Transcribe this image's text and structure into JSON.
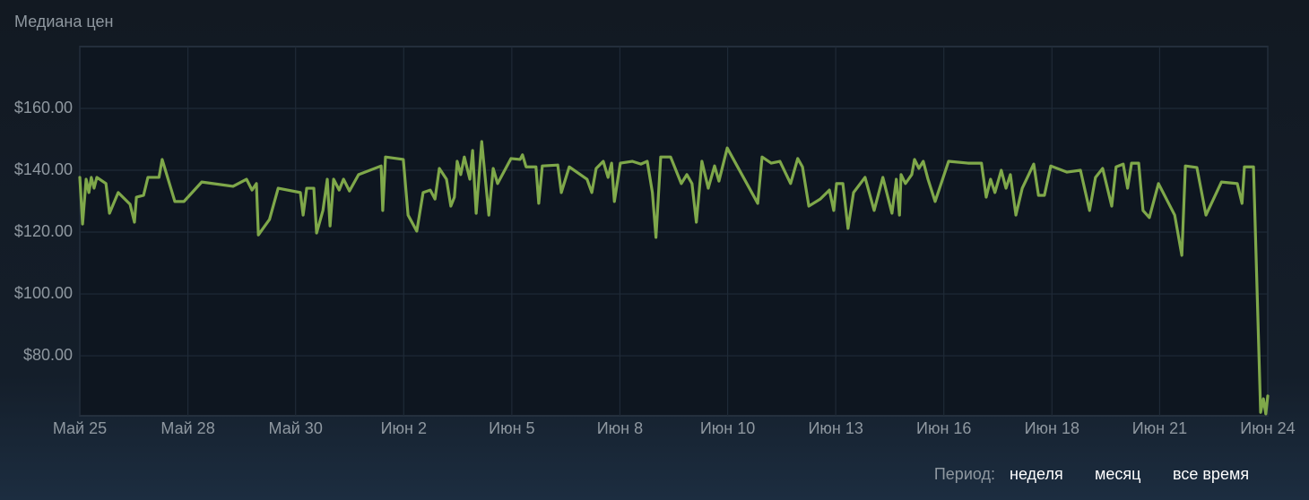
{
  "chart_data": {
    "type": "line",
    "title": "Медиана цен",
    "x": [
      0,
      0.07,
      0.16,
      0.23,
      0.29,
      0.36,
      0.43,
      0.66,
      0.75,
      0.97,
      1.27,
      1.38,
      1.43,
      1.61,
      1.72,
      2.0,
      2.08,
      2.4,
      2.63,
      3.08,
      3.87,
      4.21,
      4.35,
      4.46,
      4.51,
      4.79,
      5.01,
      5.57,
      5.64,
      5.73,
      5.91,
      5.98,
      6.14,
      6.25,
      6.32,
      6.41,
      6.55,
      6.66,
      6.81,
      7.04,
      7.61,
      7.65,
      7.72,
      8.17,
      8.29,
      8.51,
      8.67,
      8.85,
      8.97,
      9.08,
      9.26,
      9.37,
      9.46,
      9.53,
      9.62,
      9.71,
      9.85,
      9.92,
      10.01,
      10.15,
      10.33,
      10.44,
      10.55,
      10.89,
      11.12,
      11.18,
      11.27,
      11.52,
      11.59,
      11.68,
      12.07,
      12.16,
      12.36,
      12.81,
      12.93,
      13.04,
      13.22,
      13.34,
      13.43,
      13.5,
      13.65,
      13.95,
      14.17,
      14.33,
      14.46,
      14.55,
      14.67,
      14.92,
      15.19,
      15.33,
      15.46,
      15.57,
      15.71,
      15.87,
      16.03,
      16.14,
      16.35,
      17.12,
      17.23,
      17.46,
      17.68,
      17.95,
      18.13,
      18.25,
      18.41,
      18.7,
      18.93,
      19.04,
      19.11,
      19.27,
      19.4,
      19.54,
      19.83,
      20.06,
      20.28,
      20.51,
      20.62,
      20.7,
      20.74,
      20.85,
      21.01,
      21.08,
      21.19,
      21.3,
      21.42,
      21.6,
      21.94,
      22.43,
      22.77,
      22.89,
      23.0,
      23.11,
      23.27,
      23.39,
      23.5,
      23.64,
      23.8,
      24.09,
      24.21,
      24.36,
      24.52,
      24.93,
      25.27,
      25.5,
      25.65,
      25.83,
      26.06,
      26.17,
      26.35,
      26.46,
      26.56,
      26.74,
      26.85,
      27.01,
      27.24,
      27.65,
      27.83,
      27.92,
      28.21,
      28.44,
      28.83,
      29.23,
      29.35,
      29.41,
      29.64,
      29.82,
      29.89,
      29.95,
      30
    ],
    "series": [
      {
        "color": "#7fa84a",
        "values": [
          137.7,
          122.6,
          137.1,
          132.8,
          137.7,
          134.2,
          137.7,
          135.7,
          126.1,
          132.8,
          129,
          123.2,
          131.3,
          131.9,
          137.7,
          137.7,
          143.5,
          129.9,
          129.9,
          136.2,
          134.8,
          137.1,
          133.6,
          135.7,
          119.1,
          124.1,
          134.2,
          132.8,
          125.5,
          134.2,
          134.2,
          119.7,
          127,
          137.1,
          122,
          137.1,
          133.6,
          137.1,
          133.3,
          138.6,
          141.4,
          127,
          144.3,
          143.5,
          125.5,
          120.3,
          132.8,
          133.6,
          130.7,
          140.6,
          137.1,
          128.4,
          131.3,
          142.9,
          138.6,
          144.3,
          137.1,
          146.4,
          126.1,
          149.3,
          125.5,
          140.6,
          135.7,
          143.8,
          143.5,
          145,
          141.1,
          141.1,
          129.3,
          141.4,
          141.7,
          132.8,
          141.1,
          137.1,
          132.8,
          140.6,
          142.9,
          137.7,
          142.3,
          129.9,
          142.3,
          142.9,
          142,
          142.9,
          132.8,
          118.3,
          144.3,
          144.3,
          135.7,
          138.6,
          135.7,
          123.2,
          142.9,
          134.2,
          141.4,
          136.5,
          147.2,
          129.3,
          144.3,
          142.3,
          142.9,
          135.7,
          143.8,
          141.1,
          128.4,
          130.7,
          133.6,
          127,
          135.7,
          135.7,
          121.2,
          132.8,
          137.7,
          127,
          137.7,
          126.1,
          137.1,
          125.5,
          138.6,
          135.7,
          138.6,
          143.5,
          140.6,
          142.9,
          137.1,
          129.9,
          142.9,
          142.3,
          142.3,
          131.3,
          137.1,
          132.8,
          140,
          134.2,
          138.6,
          125.5,
          134.2,
          142,
          131.9,
          131.9,
          141.4,
          139.4,
          140,
          127,
          137.7,
          140.6,
          128.4,
          141.1,
          142,
          134.2,
          142.3,
          142.3,
          127,
          124.7,
          135.7,
          125.5,
          112.5,
          141.4,
          140.9,
          125.5,
          136.2,
          135.7,
          129.3,
          141.1,
          141.1,
          61.7,
          66.1,
          61.2,
          67
        ]
      }
    ],
    "xlim": [
      0,
      30
    ],
    "xticks": [
      {
        "value": 0,
        "label": "Май 25"
      },
      {
        "value": 2.73,
        "label": "Май 28"
      },
      {
        "value": 5.45,
        "label": "Май 30"
      },
      {
        "value": 8.18,
        "label": "Июн 2"
      },
      {
        "value": 10.91,
        "label": "Июн 5"
      },
      {
        "value": 13.64,
        "label": "Июн 8"
      },
      {
        "value": 16.36,
        "label": "Июн 10"
      },
      {
        "value": 19.09,
        "label": "Июн 13"
      },
      {
        "value": 21.82,
        "label": "Июн 16"
      },
      {
        "value": 24.55,
        "label": "Июн 18"
      },
      {
        "value": 27.27,
        "label": "Июн 21"
      },
      {
        "value": 30,
        "label": "Июн 24"
      }
    ],
    "ylim": [
      60.6,
      180
    ],
    "yticks": [
      {
        "value": 80,
        "label": "$80.00"
      },
      {
        "value": 100,
        "label": "$100.00"
      },
      {
        "value": 120,
        "label": "$120.00"
      },
      {
        "value": 140,
        "label": "$140.00"
      },
      {
        "value": 160,
        "label": "$160.00"
      }
    ],
    "grid": true
  },
  "controls": {
    "label": "Период:",
    "options": [
      "неделя",
      "месяц",
      "все время"
    ]
  }
}
